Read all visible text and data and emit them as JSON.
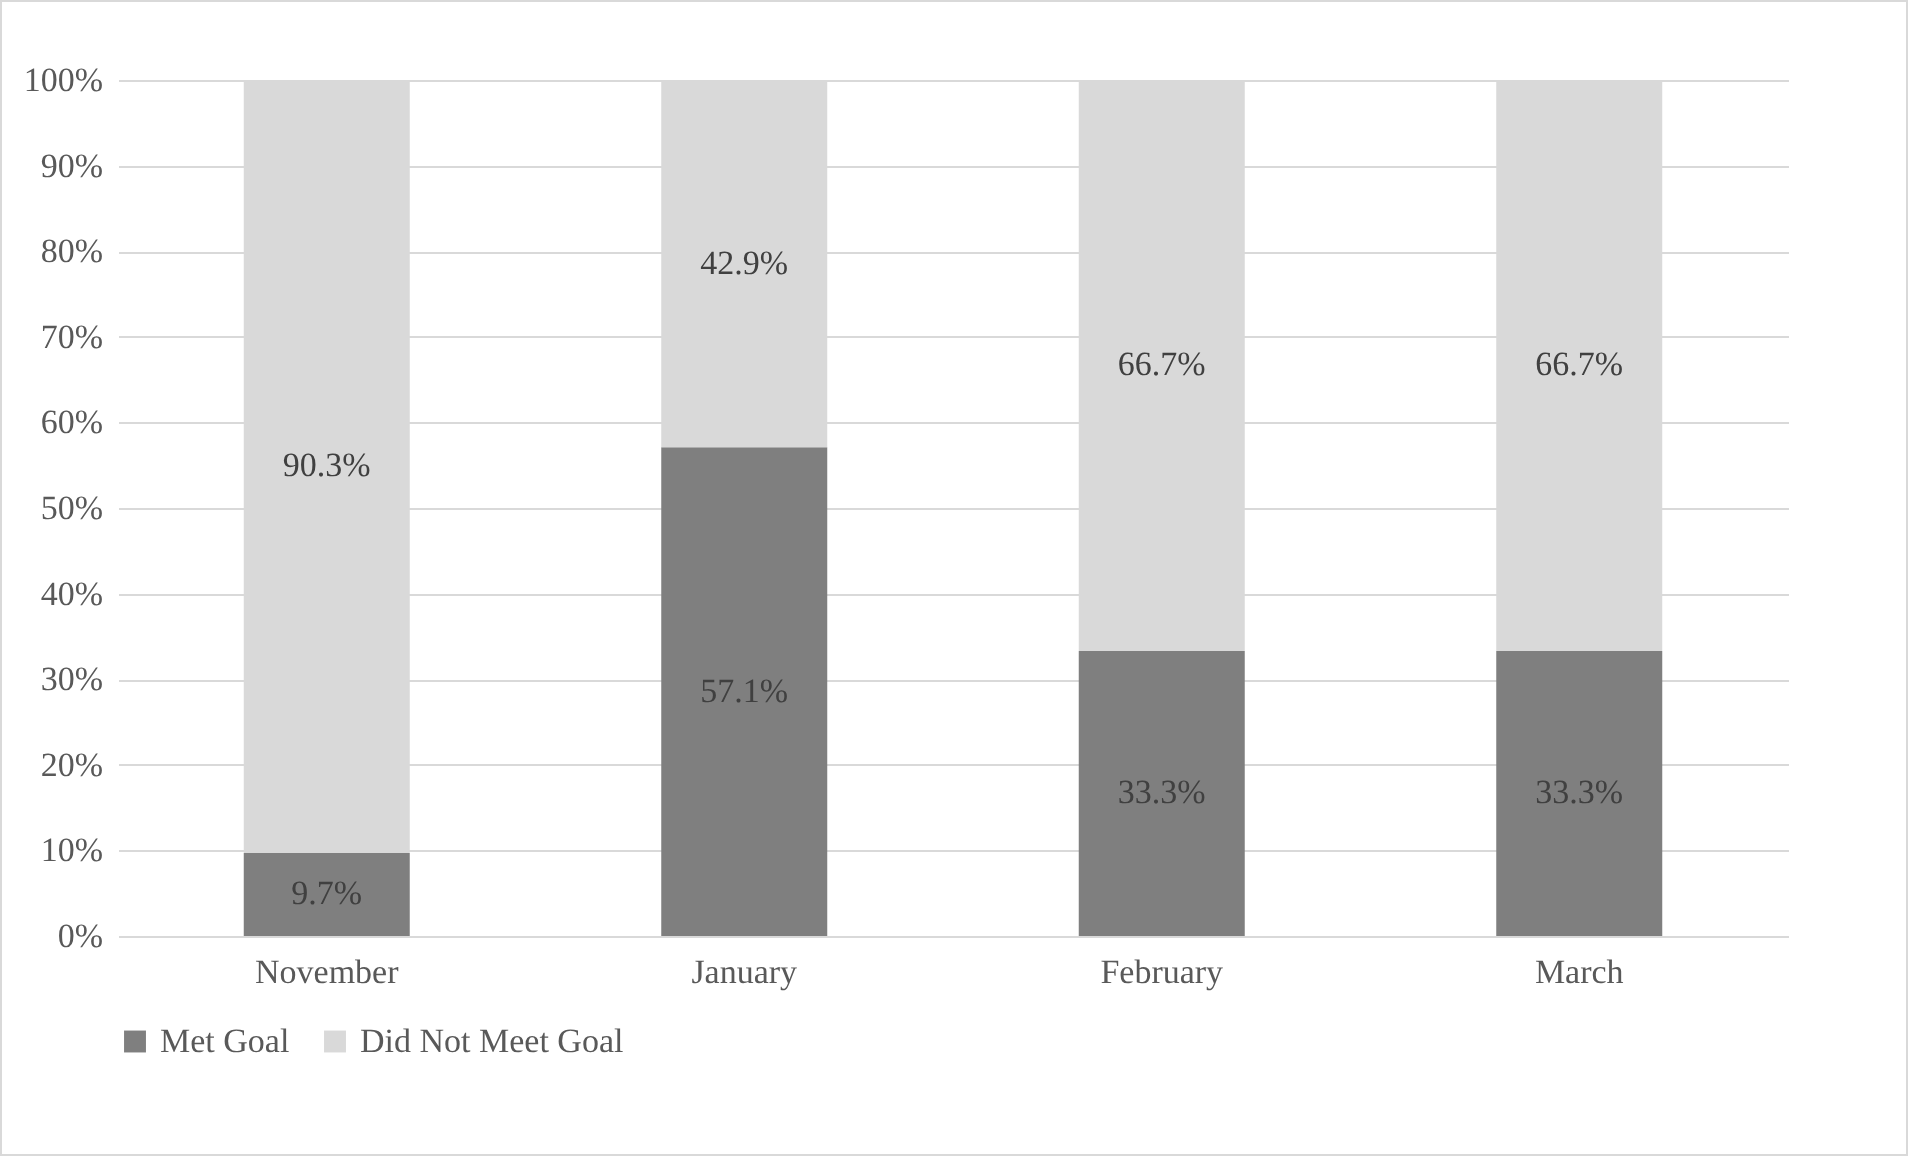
{
  "chart_data": {
    "type": "bar",
    "stacked": true,
    "categories": [
      "November",
      "January",
      "February",
      "March"
    ],
    "series": [
      {
        "name": "Met Goal",
        "color": "#7f7f7f",
        "values": [
          9.7,
          57.1,
          33.3,
          33.3
        ],
        "value_labels": [
          "9.7%",
          "57.1%",
          "33.3%",
          "33.3%"
        ]
      },
      {
        "name": "Did Not Meet Goal",
        "color": "#d9d9d9",
        "values": [
          90.3,
          42.9,
          66.7,
          66.7
        ],
        "value_labels": [
          "90.3%",
          "42.9%",
          "66.7%",
          "66.7%"
        ]
      }
    ],
    "ylim": [
      0,
      100
    ],
    "yticks": [
      {
        "value": 0,
        "label": "0%"
      },
      {
        "value": 10,
        "label": "10%"
      },
      {
        "value": 20,
        "label": "20%"
      },
      {
        "value": 30,
        "label": "30%"
      },
      {
        "value": 40,
        "label": "40%"
      },
      {
        "value": 50,
        "label": "50%"
      },
      {
        "value": 60,
        "label": "60%"
      },
      {
        "value": 70,
        "label": "70%"
      },
      {
        "value": 80,
        "label": "80%"
      },
      {
        "value": 90,
        "label": "90%"
      },
      {
        "value": 100,
        "label": "100%"
      }
    ],
    "grid": "y",
    "legend": "bottom"
  }
}
